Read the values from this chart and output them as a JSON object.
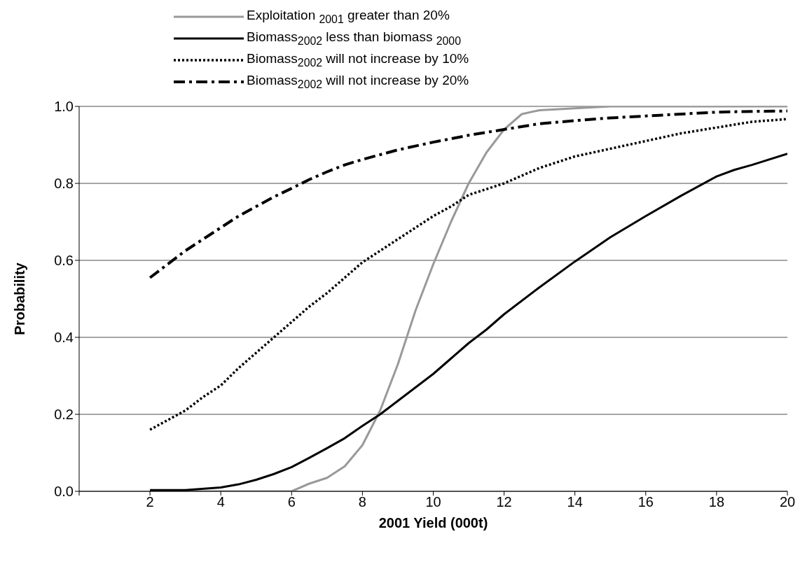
{
  "chart_data": {
    "type": "line",
    "xlabel": "2001 Yield (000t)",
    "ylabel": "Probability",
    "xlim": [
      0,
      20
    ],
    "xticks": [
      {
        "value": 0,
        "label": null
      },
      2,
      4,
      6,
      8,
      10,
      12,
      14,
      16,
      18,
      20
    ],
    "ylim": [
      0,
      1
    ],
    "yticks": [
      {
        "value": 0,
        "label": "0.0"
      },
      {
        "value": 0.2,
        "label": "0.2"
      },
      {
        "value": 0.4,
        "label": "0.4"
      },
      {
        "value": 0.6,
        "label": "0.6"
      },
      {
        "value": 0.8,
        "label": "0.8"
      },
      {
        "value": 1,
        "label": "1.0"
      }
    ],
    "grid": "y",
    "legend": "top left",
    "marker": "none",
    "series": [
      {
        "name": "Exploitation $_{2001}$ greater than 20%",
        "color": "#999999",
        "line_style": "solid",
        "x": [
          2,
          3,
          4,
          5,
          6,
          6.5,
          7,
          7.5,
          8,
          8.5,
          9,
          9.5,
          10,
          10.5,
          11,
          11.5,
          12,
          12.5,
          13,
          14,
          15,
          16,
          18,
          20
        ],
        "values": [
          0,
          0,
          0,
          0,
          0,
          0.02,
          0.035,
          0.065,
          0.12,
          0.21,
          0.33,
          0.47,
          0.59,
          0.7,
          0.8,
          0.88,
          0.94,
          0.98,
          0.99,
          0.995,
          1,
          1,
          1,
          1
        ]
      },
      {
        "name": "Biomass$_{2002}$ less than biomass $_{2000}$",
        "color": "#000000",
        "line_style": "solid",
        "x": [
          2,
          3,
          4,
          4.5,
          5,
          5.5,
          6,
          6.5,
          7,
          7.5,
          8,
          8.5,
          9,
          9.5,
          10,
          10.5,
          11,
          11.5,
          12,
          13,
          14,
          15,
          16,
          17,
          18,
          18.5,
          19,
          20
        ],
        "values": [
          0.003,
          0.003,
          0.01,
          0.018,
          0.03,
          0.045,
          0.063,
          0.087,
          0.112,
          0.138,
          0.17,
          0.2,
          0.235,
          0.27,
          0.305,
          0.345,
          0.385,
          0.42,
          0.46,
          0.53,
          0.597,
          0.66,
          0.715,
          0.768,
          0.818,
          0.835,
          0.848,
          0.877
        ]
      },
      {
        "name": "Biomass$_{2002}$ will not increase by 10%",
        "color": "#000000",
        "line_style": "dotted",
        "x": [
          2,
          2.5,
          3,
          3.5,
          4,
          4.5,
          5,
          5.5,
          6,
          6.5,
          7,
          7.5,
          8,
          8.5,
          9,
          9.5,
          10,
          10.5,
          11,
          11.5,
          12,
          13,
          14,
          15,
          16,
          17,
          18,
          19,
          20
        ],
        "values": [
          0.16,
          0.185,
          0.21,
          0.245,
          0.275,
          0.32,
          0.36,
          0.4,
          0.44,
          0.48,
          0.515,
          0.555,
          0.595,
          0.625,
          0.655,
          0.685,
          0.715,
          0.74,
          0.77,
          0.785,
          0.8,
          0.84,
          0.87,
          0.89,
          0.91,
          0.93,
          0.945,
          0.96,
          0.967
        ]
      },
      {
        "name": "Biomass$_{2002}$ will not increase by 20%",
        "color": "#000000",
        "line_style": "dashed",
        "x": [
          2,
          2.5,
          3,
          3.5,
          4,
          4.5,
          5,
          5.5,
          6,
          6.5,
          7,
          7.5,
          8,
          9,
          10,
          11,
          12,
          13,
          14,
          15,
          16,
          17,
          18,
          19,
          20
        ],
        "values": [
          0.555,
          0.59,
          0.625,
          0.655,
          0.685,
          0.715,
          0.74,
          0.765,
          0.787,
          0.81,
          0.83,
          0.848,
          0.862,
          0.887,
          0.907,
          0.925,
          0.94,
          0.955,
          0.963,
          0.97,
          0.975,
          0.98,
          0.985,
          0.987,
          0.988
        ]
      }
    ]
  }
}
